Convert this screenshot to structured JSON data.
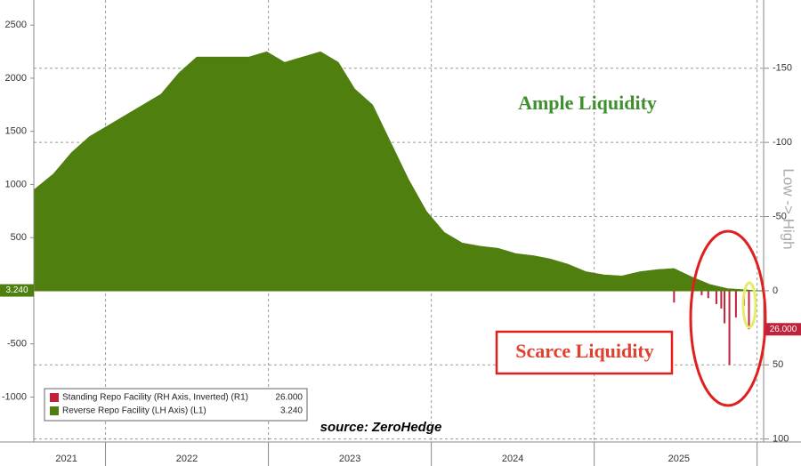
{
  "chart_data": {
    "type": "area",
    "annotations": [
      "Ample Liquidity",
      "Scarce Liquidity",
      "source: ZeroHedge",
      "Low -> High"
    ],
    "xlim": [
      2021.56,
      2026.04
    ],
    "xticks": [
      {
        "value": 2021.76,
        "label": "2021"
      },
      {
        "value": 2022.5,
        "label": "2022"
      },
      {
        "value": 2023.5,
        "label": "2023"
      },
      {
        "value": 2024.5,
        "label": "2024"
      },
      {
        "value": 2025.52,
        "label": "2025"
      }
    ],
    "ylim": [
      -1423,
      2736
    ],
    "yticks": [
      -1000,
      -500,
      500,
      1000,
      1500,
      2000,
      2500
    ],
    "y2lim": [
      -196,
      102
    ],
    "y2ticks": [
      -150,
      -100,
      -50,
      0,
      50,
      100
    ],
    "y2_inverted": true,
    "grid": true,
    "series": [
      {
        "name": "Standing Repo Facility (RH Axis, Inverted) (R1)",
        "color": "#c0213b",
        "axis": "y2",
        "type": "bar",
        "x": [
          2025.49,
          2025.66,
          2025.7,
          2025.75,
          2025.78,
          2025.8,
          2025.83,
          2025.87,
          2025.92,
          2025.95
        ],
        "values": [
          8,
          3,
          5,
          9,
          12,
          22,
          50,
          18,
          10,
          26
        ],
        "last": {
          "value": 26,
          "label": "26.000"
        }
      },
      {
        "name": "Reverse Repo Facility (LH Axis) (L1)",
        "color": "#4f7f0f",
        "type": "area",
        "x": [
          2021.56,
          2021.68,
          2021.79,
          2021.9,
          2022.01,
          2022.12,
          2022.23,
          2022.34,
          2022.45,
          2022.56,
          2022.67,
          2022.77,
          2022.88,
          2022.99,
          2023.1,
          2023.21,
          2023.32,
          2023.43,
          2023.53,
          2023.64,
          2023.75,
          2023.86,
          2023.97,
          2024.08,
          2024.19,
          2024.3,
          2024.41,
          2024.52,
          2024.63,
          2024.73,
          2024.84,
          2024.95,
          2025.06,
          2025.17,
          2025.28,
          2025.39,
          2025.49,
          2025.6,
          2025.71,
          2025.82,
          2025.93,
          2025.98
        ],
        "values": [
          950,
          1100,
          1300,
          1450,
          1550,
          1650,
          1750,
          1850,
          2050,
          2200,
          2200,
          2200,
          2200,
          2250,
          2150,
          2200,
          2250,
          2150,
          1900,
          1750,
          1400,
          1050,
          750,
          550,
          450,
          420,
          400,
          350,
          330,
          300,
          250,
          180,
          150,
          140,
          180,
          200,
          210,
          130,
          60,
          20,
          10,
          3.24
        ],
        "last": {
          "value": 3.24,
          "label": "3.240"
        }
      }
    ]
  }
}
